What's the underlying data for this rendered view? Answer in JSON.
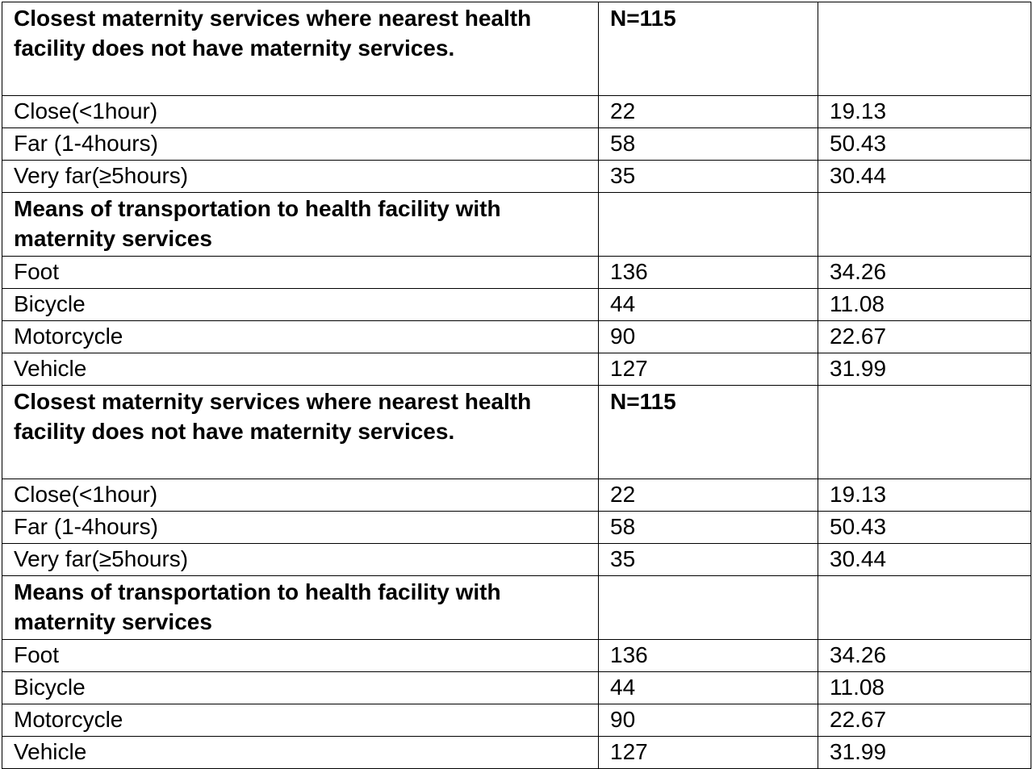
{
  "sections": [
    {
      "header": "Closest maternity services where nearest health facility does not have maternity services.",
      "n_label": "N=115",
      "rows": [
        {
          "label": "Close(<1hour)",
          "n": "22",
          "pct": "19.13"
        },
        {
          "label": "Far (1-4hours)",
          "n": "58",
          "pct": "50.43"
        },
        {
          "label": "Very far(≥5hours)",
          "n": "35",
          "pct": "30.44"
        }
      ]
    },
    {
      "header": "Means of transportation to health facility with maternity services",
      "n_label": "",
      "rows": [
        {
          "label": "Foot",
          "n": "136",
          "pct": "34.26"
        },
        {
          "label": "Bicycle",
          "n": "44",
          "pct": "11.08"
        },
        {
          "label": "Motorcycle",
          "n": "90",
          "pct": "22.67"
        },
        {
          "label": "Vehicle",
          "n": "127",
          "pct": "31.99"
        }
      ]
    },
    {
      "header": "Closest maternity services where nearest health facility does not have maternity services.",
      "n_label": "N=115",
      "rows": [
        {
          "label": "Close(<1hour)",
          "n": "22",
          "pct": "19.13"
        },
        {
          "label": "Far (1-4hours)",
          "n": "58",
          "pct": "50.43"
        },
        {
          "label": "Very far(≥5hours)",
          "n": "35",
          "pct": "30.44"
        }
      ]
    },
    {
      "header": "Means of transportation to health facility with maternity services",
      "n_label": "",
      "rows": [
        {
          "label": "Foot",
          "n": "136",
          "pct": "34.26"
        },
        {
          "label": "Bicycle",
          "n": "44",
          "pct": "11.08"
        },
        {
          "label": "Motorcycle",
          "n": "90",
          "pct": "22.67"
        },
        {
          "label": "Vehicle",
          "n": "127",
          "pct": "31.99"
        }
      ]
    }
  ]
}
